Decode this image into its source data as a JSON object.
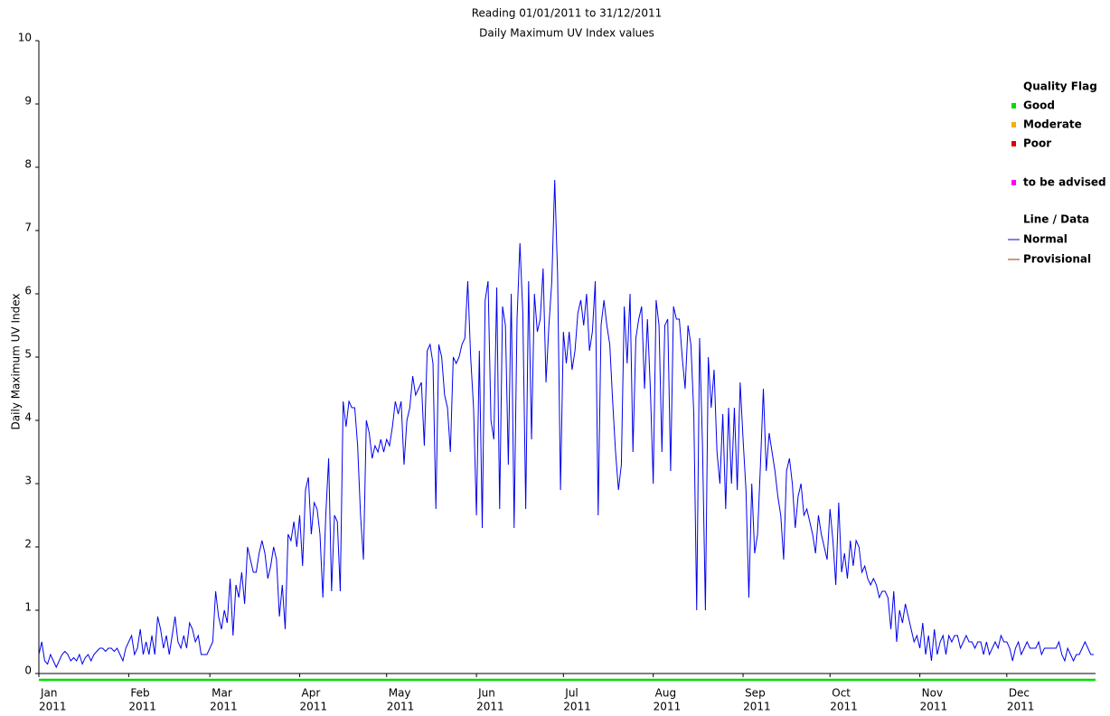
{
  "chart_data": {
    "type": "line",
    "title": "Reading 01/01/2011 to 31/12/2011",
    "subtitle": "Daily Maximum UV Index values",
    "y_label": "Daily Maximum UV Index",
    "x": [
      1,
      2,
      3,
      4,
      5,
      6,
      7,
      8,
      9,
      10,
      11,
      12,
      13,
      14,
      15,
      16,
      17,
      18,
      19,
      20,
      21,
      22,
      23,
      24,
      25,
      26,
      27,
      28,
      29,
      30,
      31,
      32,
      33,
      34,
      35,
      36,
      37,
      38,
      39,
      40,
      41,
      42,
      43,
      44,
      45,
      46,
      47,
      48,
      49,
      50,
      51,
      52,
      53,
      54,
      55,
      56,
      57,
      58,
      59,
      60,
      61,
      62,
      63,
      64,
      65,
      66,
      67,
      68,
      69,
      70,
      71,
      72,
      73,
      74,
      75,
      76,
      77,
      78,
      79,
      80,
      81,
      82,
      83,
      84,
      85,
      86,
      87,
      88,
      89,
      90,
      91,
      92,
      93,
      94,
      95,
      96,
      97,
      98,
      99,
      100,
      101,
      102,
      103,
      104,
      105,
      106,
      107,
      108,
      109,
      110,
      111,
      112,
      113,
      114,
      115,
      116,
      117,
      118,
      119,
      120,
      121,
      122,
      123,
      124,
      125,
      126,
      127,
      128,
      129,
      130,
      131,
      132,
      133,
      134,
      135,
      136,
      137,
      138,
      139,
      140,
      141,
      142,
      143,
      144,
      145,
      146,
      147,
      148,
      149,
      150,
      151,
      152,
      153,
      154,
      155,
      156,
      157,
      158,
      159,
      160,
      161,
      162,
      163,
      164,
      165,
      166,
      167,
      168,
      169,
      170,
      171,
      172,
      173,
      174,
      175,
      176,
      177,
      178,
      179,
      180,
      181,
      182,
      183,
      184,
      185,
      186,
      187,
      188,
      189,
      190,
      191,
      192,
      193,
      194,
      195,
      196,
      197,
      198,
      199,
      200,
      201,
      202,
      203,
      204,
      205,
      206,
      207,
      208,
      209,
      210,
      211,
      212,
      213,
      214,
      215,
      216,
      217,
      218,
      219,
      220,
      221,
      222,
      223,
      224,
      225,
      226,
      227,
      228,
      229,
      230,
      231,
      232,
      233,
      234,
      235,
      236,
      237,
      238,
      239,
      240,
      241,
      242,
      243,
      244,
      245,
      246,
      247,
      248,
      249,
      250,
      251,
      252,
      253,
      254,
      255,
      256,
      257,
      258,
      259,
      260,
      261,
      262,
      263,
      264,
      265,
      266,
      267,
      268,
      269,
      270,
      271,
      272,
      273,
      274,
      275,
      276,
      277,
      278,
      279,
      280,
      281,
      282,
      283,
      284,
      285,
      286,
      287,
      288,
      289,
      290,
      291,
      292,
      293,
      294,
      295,
      296,
      297,
      298,
      299,
      300,
      301,
      302,
      303,
      304,
      305,
      306,
      307,
      308,
      309,
      310,
      311,
      312,
      313,
      314,
      315,
      316,
      317,
      318,
      319,
      320,
      321,
      322,
      323,
      324,
      325,
      326,
      327,
      328,
      329,
      330,
      331,
      332,
      333,
      334,
      335,
      336,
      337,
      338,
      339,
      340,
      341,
      342,
      343,
      344,
      345,
      346,
      347,
      348,
      349,
      350,
      351,
      352,
      353,
      354,
      355,
      356,
      357,
      358,
      359,
      360,
      361,
      362,
      363,
      364,
      365
    ],
    "series": [
      {
        "name": "Normal",
        "color": "#0000ee",
        "values": [
          0.3,
          0.5,
          0.2,
          0.15,
          0.3,
          0.2,
          0.1,
          0.2,
          0.3,
          0.35,
          0.3,
          0.2,
          0.25,
          0.2,
          0.3,
          0.15,
          0.25,
          0.3,
          0.2,
          0.3,
          0.35,
          0.4,
          0.4,
          0.35,
          0.4,
          0.4,
          0.35,
          0.4,
          0.3,
          0.2,
          0.4,
          0.5,
          0.6,
          0.3,
          0.4,
          0.7,
          0.3,
          0.5,
          0.3,
          0.6,
          0.3,
          0.9,
          0.7,
          0.4,
          0.6,
          0.3,
          0.6,
          0.9,
          0.5,
          0.4,
          0.6,
          0.4,
          0.8,
          0.7,
          0.5,
          0.6,
          0.3,
          0.3,
          0.3,
          0.4,
          0.5,
          1.3,
          0.9,
          0.7,
          1.0,
          0.8,
          1.5,
          0.6,
          1.4,
          1.2,
          1.6,
          1.1,
          2.0,
          1.8,
          1.6,
          1.6,
          1.9,
          2.1,
          1.9,
          1.5,
          1.7,
          2.0,
          1.8,
          0.9,
          1.4,
          0.7,
          2.2,
          2.1,
          2.4,
          2.0,
          2.5,
          1.7,
          2.9,
          3.1,
          2.2,
          2.7,
          2.6,
          2.2,
          1.2,
          2.5,
          3.4,
          1.3,
          2.5,
          2.4,
          1.3,
          4.3,
          3.9,
          4.3,
          4.2,
          4.2,
          3.6,
          2.5,
          1.8,
          4.0,
          3.8,
          3.4,
          3.6,
          3.5,
          3.7,
          3.5,
          3.7,
          3.6,
          3.9,
          4.3,
          4.1,
          4.3,
          3.3,
          4.0,
          4.2,
          4.7,
          4.4,
          4.5,
          4.6,
          3.6,
          5.1,
          5.2,
          4.9,
          2.6,
          5.2,
          5.0,
          4.4,
          4.2,
          3.5,
          5.0,
          4.9,
          5.0,
          5.2,
          5.3,
          6.2,
          5.0,
          4.2,
          2.5,
          5.1,
          2.3,
          5.9,
          6.2,
          4.0,
          3.7,
          6.1,
          2.6,
          5.8,
          5.5,
          3.3,
          6.0,
          2.3,
          5.6,
          6.8,
          5.7,
          2.6,
          6.2,
          3.7,
          6.0,
          5.4,
          5.6,
          6.4,
          4.6,
          5.5,
          6.2,
          7.8,
          6.3,
          2.9,
          5.4,
          4.9,
          5.4,
          4.8,
          5.1,
          5.7,
          5.9,
          5.5,
          6.0,
          5.1,
          5.4,
          6.2,
          2.5,
          5.5,
          5.9,
          5.5,
          5.2,
          4.3,
          3.5,
          2.9,
          3.3,
          5.8,
          4.9,
          6.0,
          3.5,
          5.3,
          5.6,
          5.8,
          4.5,
          5.6,
          4.5,
          3.0,
          5.9,
          5.5,
          3.5,
          5.5,
          5.6,
          3.2,
          5.8,
          5.6,
          5.6,
          5.0,
          4.5,
          5.5,
          5.2,
          4.1,
          1.0,
          5.3,
          3.6,
          1.0,
          5.0,
          4.2,
          4.8,
          3.5,
          3.0,
          4.1,
          2.6,
          4.2,
          3.0,
          4.2,
          2.9,
          4.6,
          3.7,
          2.9,
          1.2,
          3.0,
          1.9,
          2.2,
          3.3,
          4.5,
          3.2,
          3.8,
          3.5,
          3.2,
          2.8,
          2.5,
          1.8,
          3.2,
          3.4,
          3.0,
          2.3,
          2.8,
          3.0,
          2.5,
          2.6,
          2.4,
          2.2,
          1.9,
          2.5,
          2.2,
          2.0,
          1.8,
          2.6,
          2.1,
          1.4,
          2.7,
          1.6,
          1.9,
          1.5,
          2.1,
          1.7,
          2.1,
          2.0,
          1.6,
          1.7,
          1.5,
          1.4,
          1.5,
          1.4,
          1.2,
          1.3,
          1.3,
          1.2,
          0.7,
          1.3,
          0.5,
          1.0,
          0.8,
          1.1,
          0.9,
          0.7,
          0.5,
          0.6,
          0.4,
          0.8,
          0.3,
          0.6,
          0.2,
          0.7,
          0.3,
          0.5,
          0.6,
          0.3,
          0.6,
          0.5,
          0.6,
          0.6,
          0.4,
          0.5,
          0.6,
          0.5,
          0.5,
          0.4,
          0.5,
          0.5,
          0.3,
          0.5,
          0.3,
          0.4,
          0.5,
          0.4,
          0.6,
          0.5,
          0.5,
          0.4,
          0.2,
          0.4,
          0.5,
          0.3,
          0.4,
          0.5,
          0.4,
          0.4,
          0.4,
          0.5,
          0.3,
          0.4,
          0.4,
          0.4,
          0.4,
          0.4,
          0.5,
          0.3,
          0.2,
          0.4,
          0.3,
          0.2,
          0.3,
          0.3,
          0.4,
          0.5,
          0.4,
          0.3,
          0.3
        ]
      }
    ],
    "xlim": [
      1,
      365
    ],
    "xticks": [
      {
        "value": 1,
        "label": [
          "Jan",
          "2011"
        ]
      },
      {
        "value": 32,
        "label": [
          "Feb",
          "2011"
        ]
      },
      {
        "value": 60,
        "label": [
          "Mar",
          "2011"
        ]
      },
      {
        "value": 91,
        "label": [
          "Apr",
          "2011"
        ]
      },
      {
        "value": 121,
        "label": [
          "May",
          "2011"
        ]
      },
      {
        "value": 152,
        "label": [
          "Jun",
          "2011"
        ]
      },
      {
        "value": 182,
        "label": [
          "Jul",
          "2011"
        ]
      },
      {
        "value": 213,
        "label": [
          "Aug",
          "2011"
        ]
      },
      {
        "value": 244,
        "label": [
          "Sep",
          "2011"
        ]
      },
      {
        "value": 274,
        "label": [
          "Oct",
          "2011"
        ]
      },
      {
        "value": 305,
        "label": [
          "Nov",
          "2011"
        ]
      },
      {
        "value": 335,
        "label": [
          "Dec",
          "2011"
        ]
      }
    ],
    "ylim": [
      0,
      10
    ],
    "yticks": [
      0,
      1,
      2,
      3,
      4,
      5,
      6,
      7,
      8,
      9,
      10
    ],
    "legend": {
      "quality_title": "Quality Flag",
      "quality": [
        {
          "name": "Good",
          "color": "#00dd00"
        },
        {
          "name": "Moderate",
          "color": "#f5b000"
        },
        {
          "name": "Poor",
          "color": "#e00000"
        },
        {
          "name": "to be advised",
          "color": "#ff00ff"
        }
      ],
      "line_title": "Line / Data",
      "lines": [
        {
          "name": "Normal",
          "color": "#0000ee"
        },
        {
          "name": "Provisional",
          "color": "#993300"
        }
      ]
    }
  }
}
